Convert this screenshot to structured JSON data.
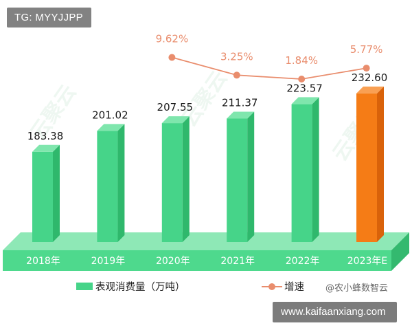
{
  "watermark_tag": "TG: MYYJJPP",
  "footer_tag": "www.kaifaanxiang.com",
  "source_note": "@农小蜂数智云",
  "legend": {
    "bar_label": "表观消费量（万吨）",
    "line_label": "增速"
  },
  "colors": {
    "bar": "#46d489",
    "bar_highlight": "#f57c16",
    "line": "#e98d6d",
    "line_label": "#e98d6d",
    "platform": "#4ed98d"
  },
  "chart_data": {
    "type": "bar",
    "categories": [
      "2018年",
      "2019年",
      "2020年",
      "2021年",
      "2022年",
      "2023年E"
    ],
    "series": [
      {
        "name": "表观消费量（万吨）",
        "type": "bar",
        "values": [
          183.38,
          201.02,
          207.55,
          211.37,
          223.57,
          232.6
        ],
        "labels": [
          "183.38",
          "201.02",
          "207.55",
          "211.37",
          "223.57",
          "232.60"
        ],
        "highlight_index": 5
      },
      {
        "name": "增速",
        "type": "line",
        "x": [
          "2019年",
          "2020年",
          "2021年",
          "2022年"
        ],
        "values": [
          9.62,
          3.25,
          1.84,
          5.77
        ],
        "labels": [
          "9.62%",
          "3.25%",
          "1.84%",
          "5.77%"
        ]
      }
    ],
    "title": "",
    "xlabel": "",
    "ylabel": "",
    "grid": false,
    "legend_position": "bottom"
  }
}
